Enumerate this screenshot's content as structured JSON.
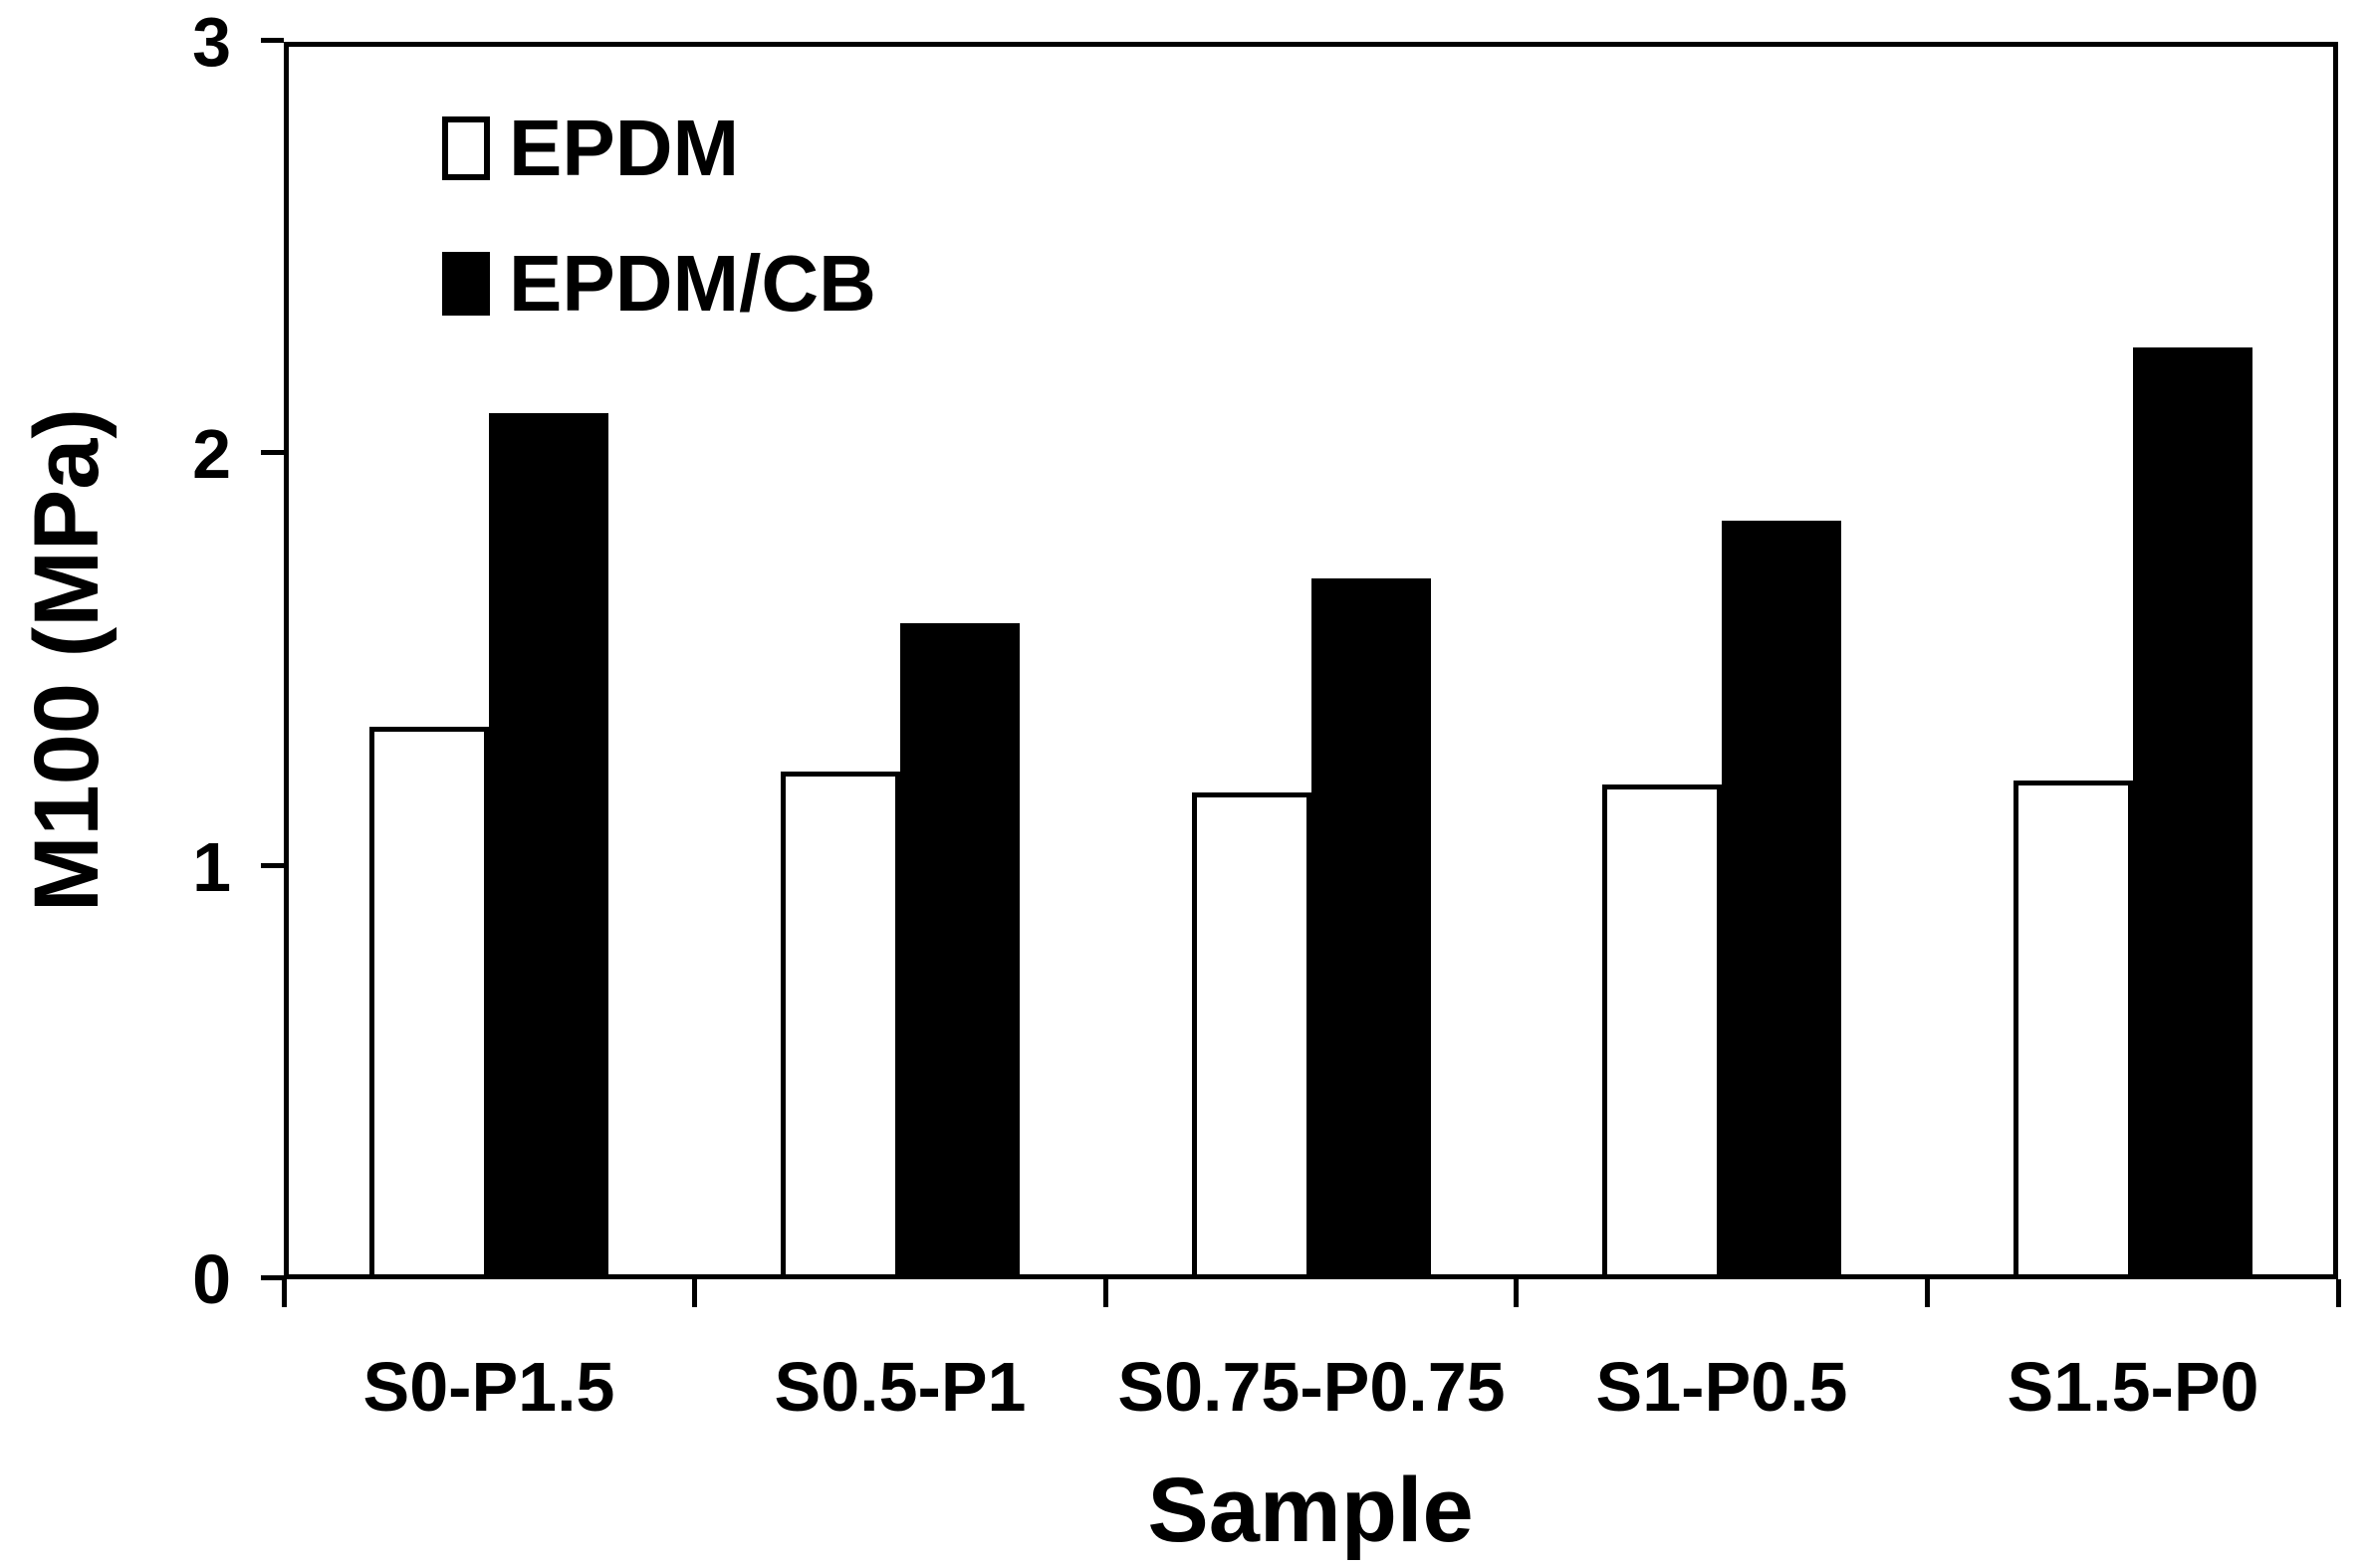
{
  "chart_data": {
    "type": "bar",
    "title": "",
    "categories": [
      "S0-P1.5",
      "S0.5-P1",
      "S0.75-P0.75",
      "S1-P0.5",
      "S1.5-P0"
    ],
    "series": [
      {
        "name": "EPDM",
        "values": [
          1.34,
          1.23,
          1.18,
          1.2,
          1.21
        ],
        "fill": "#ffffff",
        "outline": "#000000"
      },
      {
        "name": "EPDM/CB",
        "values": [
          2.1,
          1.59,
          1.7,
          1.84,
          2.26
        ],
        "fill": "#000000",
        "outline": "#000000"
      }
    ],
    "xlabel": "Sample",
    "ylabel": "M100 (MPa)",
    "ylim": [
      0,
      3
    ],
    "yticks": [
      0,
      1,
      2,
      3
    ],
    "ytick_labels": [
      "0",
      "1",
      "2",
      "3"
    ],
    "legend_position": "top-left-inside",
    "legend_entries": [
      "EPDM",
      "EPDM/CB"
    ],
    "grid": false,
    "colors": {
      "foreground": "#000000",
      "background": "#ffffff"
    }
  }
}
